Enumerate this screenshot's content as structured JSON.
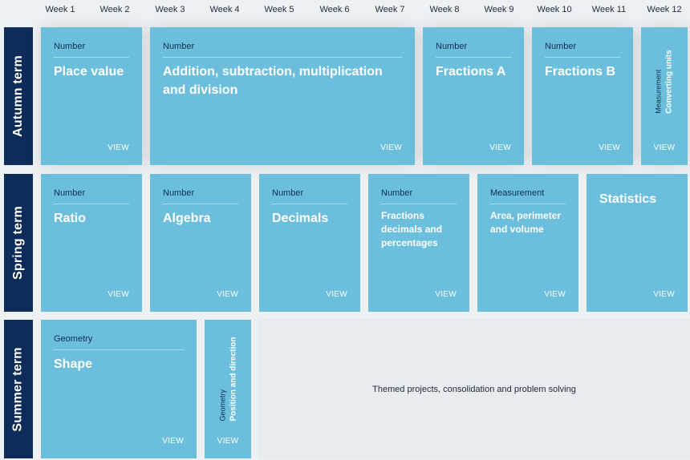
{
  "weeks": [
    "Week 1",
    "Week 2",
    "Week 3",
    "Week 4",
    "Week 5",
    "Week 6",
    "Week 7",
    "Week 8",
    "Week 9",
    "Week 10",
    "Week 11",
    "Week 12"
  ],
  "terms": {
    "autumn": "Autumn term",
    "spring": "Spring term",
    "summer": "Summer term"
  },
  "view_label": "VIEW",
  "autumn": {
    "place_value": {
      "category": "Number",
      "title": "Place value"
    },
    "addition": {
      "category": "Number",
      "title": "Addition, subtraction, multiplication and division"
    },
    "fractions_a": {
      "category": "Number",
      "title": "Fractions A"
    },
    "fractions_b": {
      "category": "Number",
      "title": "Fractions B"
    },
    "converting_units": {
      "category": "Measurement",
      "title": "Converting units"
    }
  },
  "spring": {
    "ratio": {
      "category": "Number",
      "title": "Ratio"
    },
    "algebra": {
      "category": "Number",
      "title": "Algebra"
    },
    "decimals": {
      "category": "Number",
      "title": "Decimals"
    },
    "fdp": {
      "category": "Number",
      "title": "Fractions decimals and percentages"
    },
    "area": {
      "category": "Measurement",
      "title": "Area, perimeter and volume"
    },
    "statistics": {
      "title": "Statistics"
    }
  },
  "summer": {
    "shape": {
      "category": "Geometry",
      "title": "Shape"
    },
    "position": {
      "category": "Geometry",
      "title": "Position and direction"
    },
    "themed": "Themed projects, consolidation and problem solving"
  },
  "colors": {
    "card": "#6bbfdd",
    "term_label": "#0d2c5a",
    "background": "#eef1f4"
  }
}
